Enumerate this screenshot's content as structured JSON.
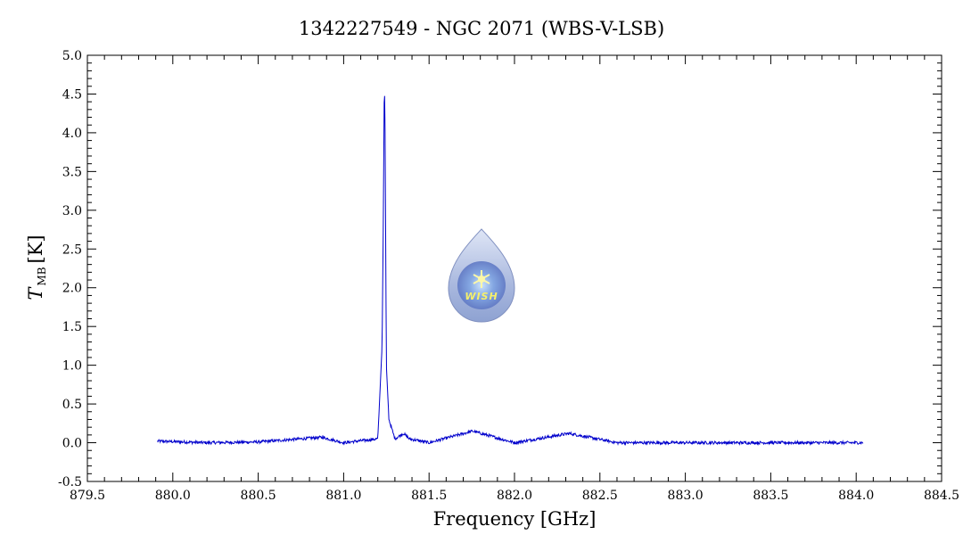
{
  "chart_data": {
    "type": "line",
    "title": "1342227549 - NGC 2071 (WBS-V-LSB)",
    "xlabel": "Frequency [GHz]",
    "ylabel": {
      "main": "T",
      "sub": "MB",
      "unit": "[K]"
    },
    "xlim": [
      879.5,
      884.5
    ],
    "ylim": [
      -0.5,
      5.0
    ],
    "xticks": [
      "879.5",
      "880.0",
      "880.5",
      "881.0",
      "881.5",
      "882.0",
      "882.5",
      "883.0",
      "883.5",
      "884.0",
      "884.5"
    ],
    "yticks": [
      "-0.5",
      "0.0",
      "0.5",
      "1.0",
      "1.5",
      "2.0",
      "2.5",
      "3.0",
      "3.5",
      "4.0",
      "4.5",
      "5.0"
    ],
    "grid": false,
    "series": [
      {
        "color": "#0000cc",
        "x_range": [
          879.91,
          884.04
        ],
        "baseline": 0.0,
        "noise_rms": 0.012,
        "points": [
          {
            "x": 879.91,
            "y": 0.02
          },
          {
            "x": 880.2,
            "y": 0.0
          },
          {
            "x": 880.5,
            "y": 0.01
          },
          {
            "x": 880.875,
            "y": 0.07
          },
          {
            "x": 881.0,
            "y": 0.0
          },
          {
            "x": 881.2,
            "y": 0.05
          },
          {
            "x": 881.225,
            "y": 1.25
          },
          {
            "x": 881.232,
            "y": 2.8
          },
          {
            "x": 881.238,
            "y": 4.67
          },
          {
            "x": 881.242,
            "y": 4.25
          },
          {
            "x": 881.25,
            "y": 1.0
          },
          {
            "x": 881.265,
            "y": 0.3
          },
          {
            "x": 881.3,
            "y": 0.05
          },
          {
            "x": 881.35,
            "y": 0.12
          },
          {
            "x": 881.385,
            "y": 0.05
          },
          {
            "x": 881.5,
            "y": 0.0
          },
          {
            "x": 881.755,
            "y": 0.15
          },
          {
            "x": 882.0,
            "y": 0.0
          },
          {
            "x": 882.32,
            "y": 0.12
          },
          {
            "x": 882.6,
            "y": 0.0
          },
          {
            "x": 883.0,
            "y": 0.0
          },
          {
            "x": 883.5,
            "y": 0.0
          },
          {
            "x": 884.04,
            "y": 0.0
          }
        ]
      }
    ]
  },
  "logo": {
    "text": "WISH",
    "icon": "water-drop-star-icon",
    "colors": [
      "#a9b8de",
      "#5f78c4",
      "#f6f06a"
    ]
  }
}
